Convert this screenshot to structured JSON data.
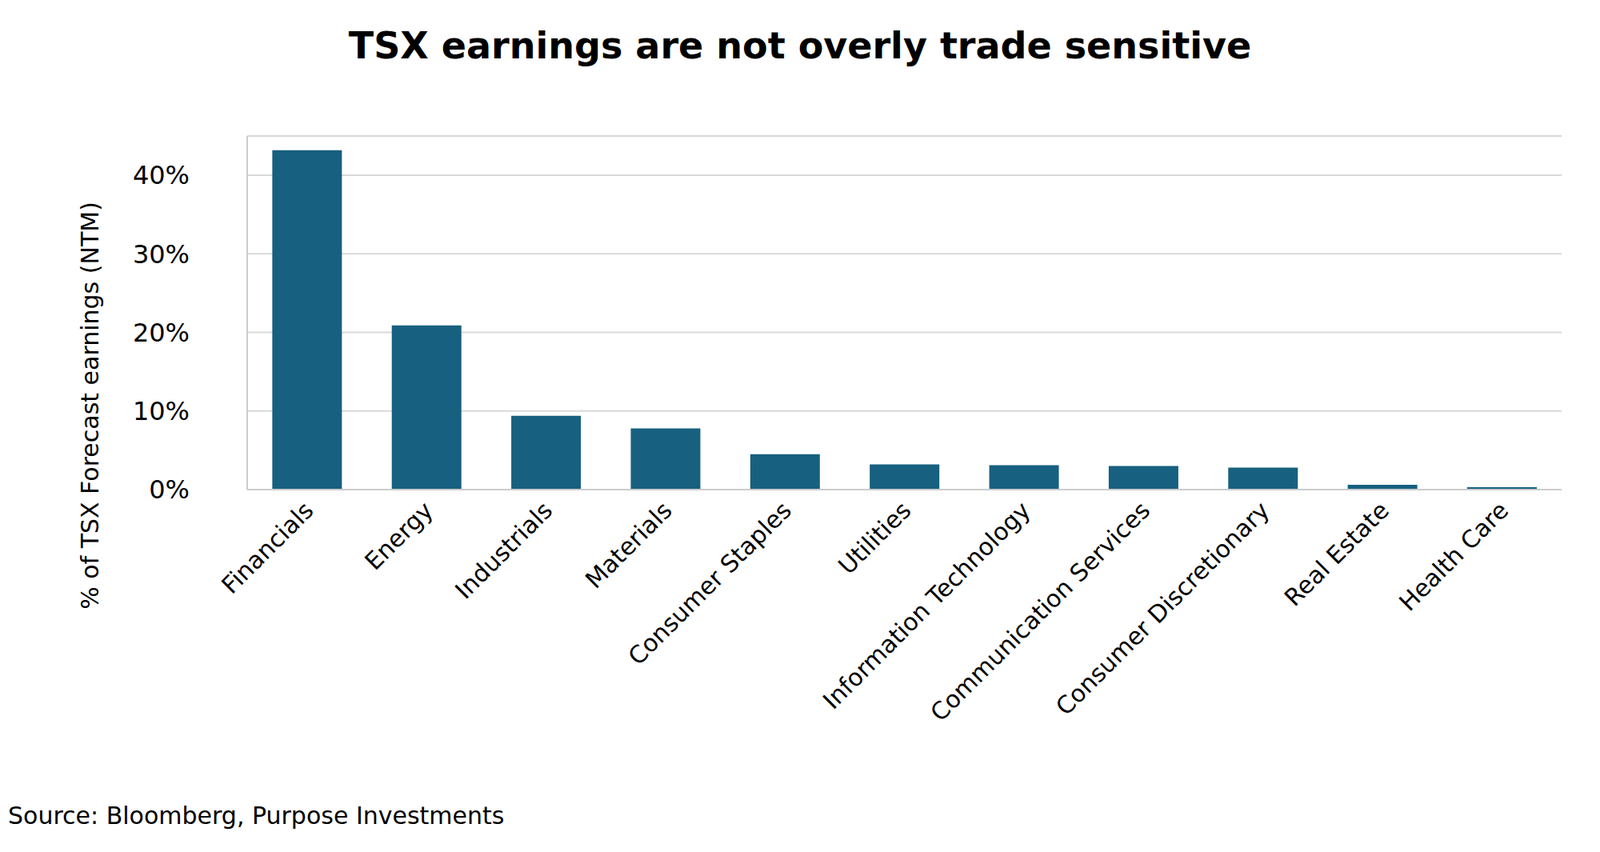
{
  "chart_data": {
    "type": "bar",
    "title": "TSX earnings are not overly trade sensitive",
    "y_label": "% of TSX Forecast earnings (NTM)",
    "source": "Source: Bloomberg, Purpose Investments",
    "categories": [
      "Financials",
      "Energy",
      "Industrials",
      "Materials",
      "Consumer Staples",
      "Utilities",
      "Information Technology",
      "Communication Services",
      "Consumer Discretionary",
      "Real Estate",
      "Health Care"
    ],
    "values": [
      43.2,
      20.9,
      9.4,
      7.8,
      4.5,
      3.2,
      3.1,
      3.0,
      2.8,
      0.6,
      0.3
    ],
    "color": "#17607f",
    "ylim": [
      0,
      45
    ],
    "yticks": [
      {
        "value": 0,
        "label": "0%"
      },
      {
        "value": 10,
        "label": "10%"
      },
      {
        "value": 20,
        "label": "20%"
      },
      {
        "value": 30,
        "label": "30%"
      },
      {
        "value": 40,
        "label": "40%"
      }
    ],
    "grid": true
  }
}
